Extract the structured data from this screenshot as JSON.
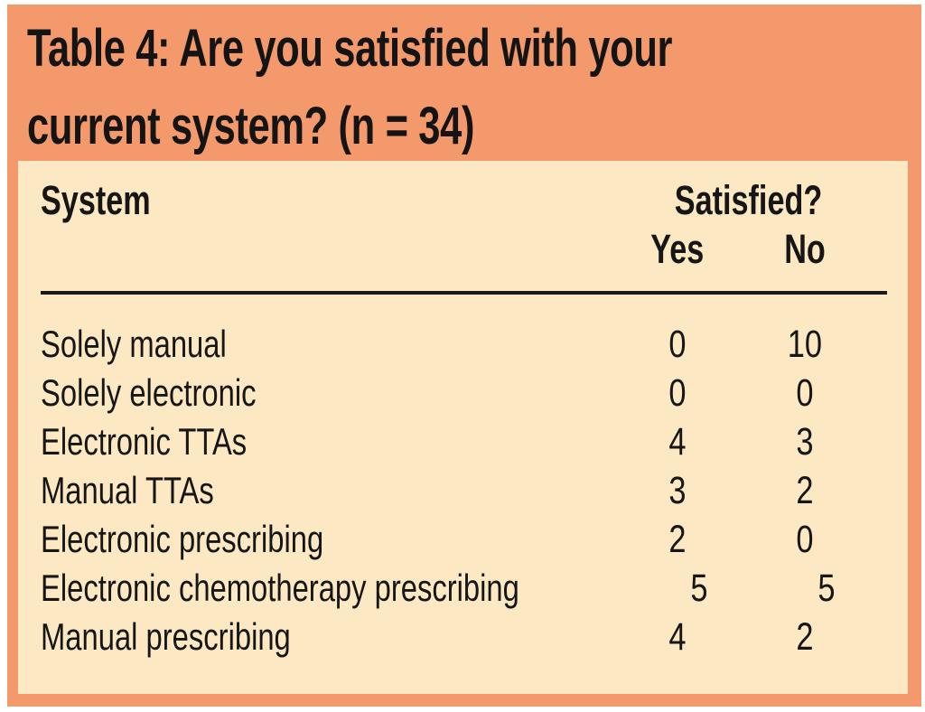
{
  "title": {
    "full": "Table 4: Are you satisfied with your current system? (n = 34)",
    "line1": "Table 4: Are you satisfied with your",
    "line2": "current system? (n = 34)"
  },
  "table": {
    "col_system": "System",
    "col_satisfied": "Satisfied?",
    "col_yes": "Yes",
    "col_no": "No",
    "rows": [
      {
        "label": "Solely manual",
        "yes": "0",
        "no": "10"
      },
      {
        "label": "Solely electronic",
        "yes": "0",
        "no": "0"
      },
      {
        "label": "Electronic TTAs",
        "yes": "4",
        "no": "3"
      },
      {
        "label": "Manual TTAs",
        "yes": "3",
        "no": "2"
      },
      {
        "label": "Electronic prescribing",
        "yes": "2",
        "no": "0"
      },
      {
        "label": "Electronic chemotherapy prescribing",
        "yes": "5",
        "no": "5"
      },
      {
        "label": "Manual prescribing",
        "yes": "4",
        "no": "2"
      }
    ]
  },
  "colors": {
    "panel_orange": "#F4996B",
    "card_cream": "#FDE8C4",
    "text_black": "#161616"
  },
  "chart_data": {
    "type": "table",
    "title": "Table 4: Are you satisfied with your current system? (n = 34)",
    "n": 34,
    "columns": [
      "System",
      "Satisfied? - Yes",
      "Satisfied? - No"
    ],
    "rows": [
      [
        "Solely manual",
        0,
        10
      ],
      [
        "Solely electronic",
        0,
        0
      ],
      [
        "Electronic TTAs",
        4,
        3
      ],
      [
        "Manual TTAs",
        3,
        2
      ],
      [
        "Electronic prescribing",
        2,
        0
      ],
      [
        "Electronic chemotherapy prescribing",
        5,
        5
      ],
      [
        "Manual prescribing",
        4,
        2
      ]
    ]
  }
}
